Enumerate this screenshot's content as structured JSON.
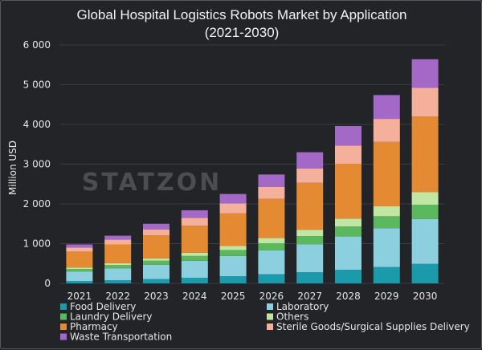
{
  "chart_data": {
    "type": "bar",
    "stacked": true,
    "title": "Global Hospital Logistics Robots Market by Application",
    "subtitle": "(2021-2030)",
    "xlabel": "",
    "ylabel": "Million USD",
    "ylim": [
      0,
      6000
    ],
    "yticks": [
      0,
      1000,
      2000,
      3000,
      4000,
      5000,
      6000
    ],
    "ytick_labels": [
      "0",
      "1 000",
      "2 000",
      "3 000",
      "4 000",
      "5 000",
      "6 000"
    ],
    "grid": true,
    "legend_position": "bottom",
    "watermark": "STATZON",
    "categories": [
      "2021",
      "2022",
      "2023",
      "2024",
      "2025",
      "2026",
      "2027",
      "2028",
      "2029",
      "2030"
    ],
    "series": [
      {
        "name": "Food Delivery",
        "color": "#1a9aab",
        "values": [
          60,
          80,
          110,
          140,
          180,
          230,
          280,
          340,
          410,
          490
        ]
      },
      {
        "name": "Laboratory",
        "color": "#8ccfdf",
        "values": [
          240,
          300,
          360,
          430,
          510,
          600,
          700,
          840,
          980,
          1130
        ]
      },
      {
        "name": "Laundry Delivery",
        "color": "#5cb85c",
        "values": [
          60,
          80,
          100,
          120,
          150,
          180,
          210,
          250,
          300,
          360
        ]
      },
      {
        "name": "Others",
        "color": "#c1e6a3",
        "values": [
          40,
          50,
          60,
          80,
          100,
          130,
          160,
          200,
          250,
          320
        ]
      },
      {
        "name": "Pharmacy",
        "color": "#e38a32",
        "values": [
          400,
          470,
          580,
          680,
          820,
          990,
          1180,
          1380,
          1620,
          1900
        ]
      },
      {
        "name": "Sterile Goods/Surgical Supplies Delivery",
        "color": "#f4b09a",
        "values": [
          100,
          120,
          150,
          200,
          250,
          300,
          360,
          460,
          580,
          720
        ]
      },
      {
        "name": "Waste Transportation",
        "color": "#a468c6",
        "values": [
          80,
          100,
          140,
          190,
          240,
          310,
          410,
          490,
          600,
          720
        ]
      }
    ]
  }
}
